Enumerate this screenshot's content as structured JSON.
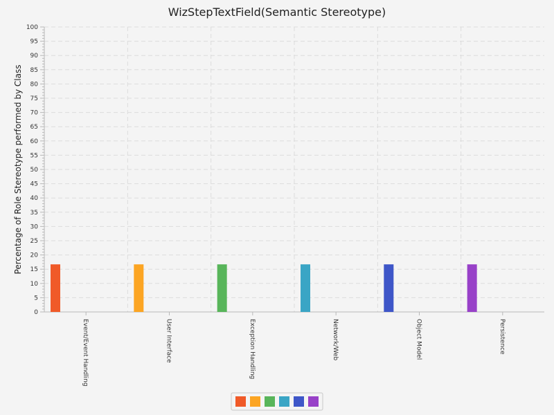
{
  "chart_data": {
    "type": "bar",
    "title": "WizStepTextField(Semantic Stereotype)",
    "ylabel": "Percentage of Role Stereotype performed by Class",
    "xlabel": "",
    "ylim": [
      0,
      100
    ],
    "y_major_step": 5,
    "y_minor_step": 1,
    "grid": true,
    "legend_position": "bottom",
    "categories": [
      "Event/Event Handling",
      "User Interface",
      "Exception Handling",
      "Network/Web",
      "Object Model",
      "Persistence"
    ],
    "values": [
      16.7,
      16.7,
      16.7,
      16.7,
      16.7,
      16.7
    ],
    "colors": [
      "#f05a28",
      "#fca523",
      "#58b55a",
      "#3aa5c5",
      "#3e56c8",
      "#9841c8"
    ]
  }
}
